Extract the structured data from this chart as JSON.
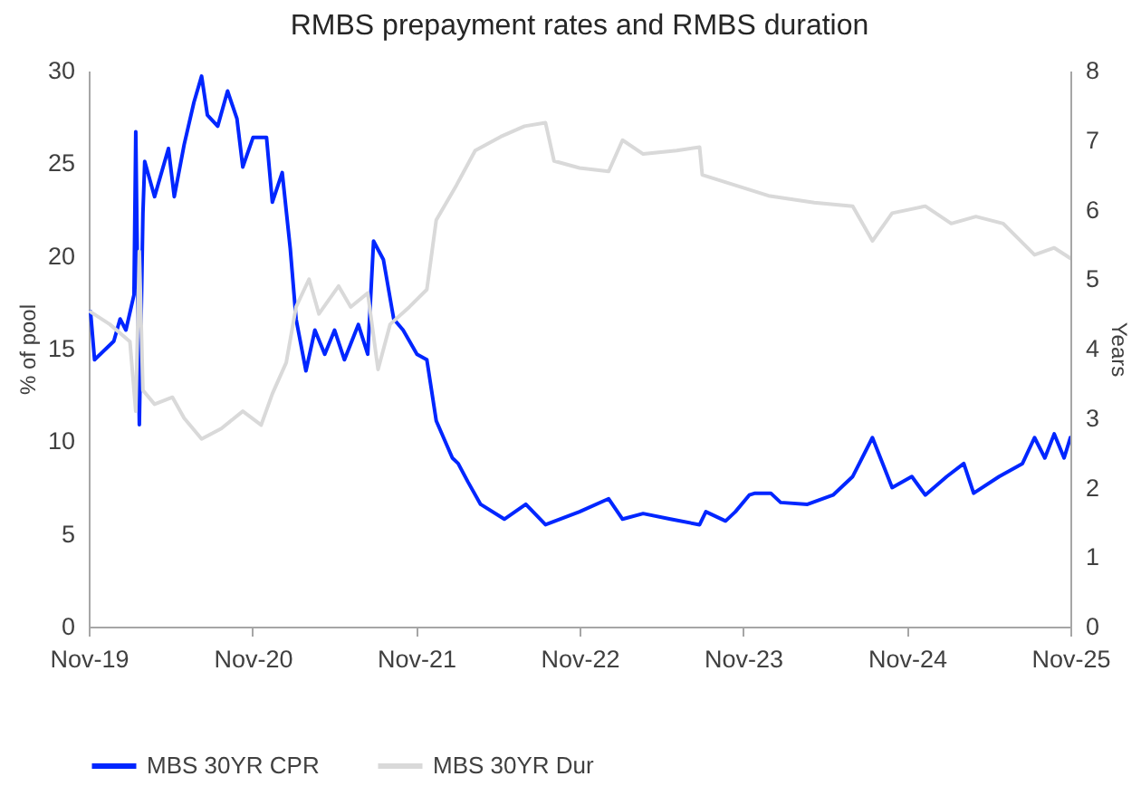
{
  "chart_data": {
    "type": "line",
    "title": "RMBS prepayment rates and RMBS duration",
    "ylabel": "% of pool",
    "y2label": "Years",
    "xlim": [
      "2019-11",
      "2025-11"
    ],
    "xticks": [
      {
        "value": "2019-11",
        "label": "Nov-19"
      },
      {
        "value": "2020-11",
        "label": "Nov-20"
      },
      {
        "value": "2021-11",
        "label": "Nov-21"
      },
      {
        "value": "2022-11",
        "label": "Nov-22"
      },
      {
        "value": "2023-11",
        "label": "Nov-23"
      },
      {
        "value": "2024-11",
        "label": "Nov-24"
      },
      {
        "value": "2025-11",
        "label": "Nov-25"
      }
    ],
    "ylim": [
      0,
      30
    ],
    "yticks": [
      0,
      5,
      10,
      15,
      20,
      25,
      30
    ],
    "y2lim": [
      0,
      8
    ],
    "y2ticks": [
      0,
      1,
      2,
      3,
      4,
      5,
      6,
      7,
      8
    ],
    "grid": false,
    "legend": "bottom",
    "marker": "none",
    "line_style": "solid",
    "series": [
      {
        "name": "MBS 30YR CPR",
        "color": "#0026ff",
        "x": [
          "2019-11-05",
          "2019-11-14",
          "2019-12-27",
          "2020-01-10",
          "2020-01-23",
          "2020-02-10",
          "2020-02-14",
          "2020-02-22",
          "2020-03-01",
          "2020-03-05",
          "2020-03-27",
          "2020-04-27",
          "2020-05-10",
          "2020-06-01",
          "2020-06-23",
          "2020-07-10",
          "2020-07-23",
          "2020-08-15",
          "2020-09-06",
          "2020-09-27",
          "2020-10-10",
          "2020-11-02",
          "2020-12-02",
          "2020-12-15",
          "2021-01-06",
          "2021-01-24",
          "2021-02-06",
          "2021-02-28",
          "2021-03-20",
          "2021-04-11",
          "2021-05-03",
          "2021-05-25",
          "2021-06-25",
          "2021-07-16",
          "2021-07-29",
          "2021-08-20",
          "2021-09-12",
          "2021-10-03",
          "2021-11-03",
          "2021-11-25",
          "2021-12-16",
          "2022-01-21",
          "2022-02-03",
          "2022-02-25",
          "2022-03-25",
          "2022-05-17",
          "2022-07-04",
          "2022-08-17",
          "2022-11-01",
          "2023-01-05",
          "2023-02-05",
          "2023-03-23",
          "2023-05-23",
          "2023-07-27",
          "2023-08-10",
          "2023-09-23",
          "2023-10-15",
          "2023-11-15",
          "2023-11-28",
          "2024-01-02",
          "2024-01-24",
          "2024-03-24",
          "2024-05-20",
          "2024-07-03",
          "2024-08-16",
          "2024-09-29",
          "2024-11-12",
          "2024-12-12",
          "2025-01-29",
          "2025-03-08",
          "2025-03-30",
          "2025-05-26",
          "2025-07-17",
          "2025-08-13",
          "2025-09-05",
          "2025-09-26",
          "2025-10-18",
          "2025-11-01"
        ],
        "values": [
          17.0,
          14.4,
          15.4,
          16.6,
          16.0,
          17.9,
          26.7,
          10.9,
          22.3,
          25.1,
          23.2,
          25.8,
          23.2,
          26.0,
          28.3,
          29.7,
          27.6,
          27.0,
          28.9,
          27.4,
          24.8,
          26.4,
          26.4,
          22.9,
          24.5,
          20.4,
          16.6,
          13.8,
          16.0,
          14.7,
          16.0,
          14.4,
          16.3,
          14.7,
          20.8,
          19.8,
          16.6,
          16.0,
          14.7,
          14.4,
          11.1,
          9.1,
          8.8,
          7.8,
          6.6,
          5.8,
          6.6,
          5.5,
          6.2,
          6.9,
          5.8,
          6.1,
          5.8,
          5.5,
          6.2,
          5.7,
          6.2,
          7.1,
          7.2,
          7.2,
          6.7,
          6.6,
          7.1,
          8.1,
          10.2,
          7.5,
          8.1,
          7.1,
          8.1,
          8.8,
          7.2,
          8.1,
          8.8,
          10.2,
          9.1,
          10.4,
          9.1,
          10.2
        ]
      },
      {
        "name": "MBS 30YR Dur",
        "color": "#d9d9d9",
        "axis": "y2",
        "x": [
          "2019-11-05",
          "2019-12-18",
          "2020-02-01",
          "2020-02-14",
          "2020-02-22",
          "2020-03-01",
          "2020-03-27",
          "2020-05-06",
          "2020-06-01",
          "2020-07-10",
          "2020-08-23",
          "2020-10-10",
          "2020-11-20",
          "2020-12-15",
          "2021-01-15",
          "2021-02-06",
          "2021-03-07",
          "2021-03-29",
          "2021-05-12",
          "2021-06-08",
          "2021-07-16",
          "2021-08-08",
          "2021-09-04",
          "2021-10-17",
          "2021-11-25",
          "2021-12-16",
          "2022-01-30",
          "2022-03-13",
          "2022-05-09",
          "2022-07-01",
          "2022-08-17",
          "2022-09-05",
          "2022-11-01",
          "2023-01-05",
          "2023-02-05",
          "2023-03-23",
          "2023-06-06",
          "2023-07-27",
          "2023-08-02",
          "2023-10-15",
          "2023-12-28",
          "2024-04-08",
          "2024-07-03",
          "2024-08-16",
          "2024-09-29",
          "2024-12-12",
          "2025-02-08",
          "2025-04-04",
          "2025-06-04",
          "2025-08-13",
          "2025-09-26",
          "2025-11-01"
        ],
        "values": [
          4.53,
          4.35,
          4.1,
          3.1,
          5.4,
          3.4,
          3.2,
          3.3,
          3.0,
          2.7,
          2.85,
          3.1,
          2.9,
          3.35,
          3.8,
          4.6,
          5.0,
          4.5,
          4.9,
          4.6,
          4.8,
          3.7,
          4.35,
          4.6,
          4.85,
          5.85,
          6.35,
          6.85,
          7.05,
          7.2,
          7.25,
          6.7,
          6.6,
          6.55,
          7.0,
          6.8,
          6.85,
          6.9,
          6.5,
          6.35,
          6.2,
          6.1,
          6.05,
          5.55,
          5.95,
          6.05,
          5.8,
          5.9,
          5.8,
          5.35,
          5.45,
          5.3
        ]
      }
    ]
  }
}
